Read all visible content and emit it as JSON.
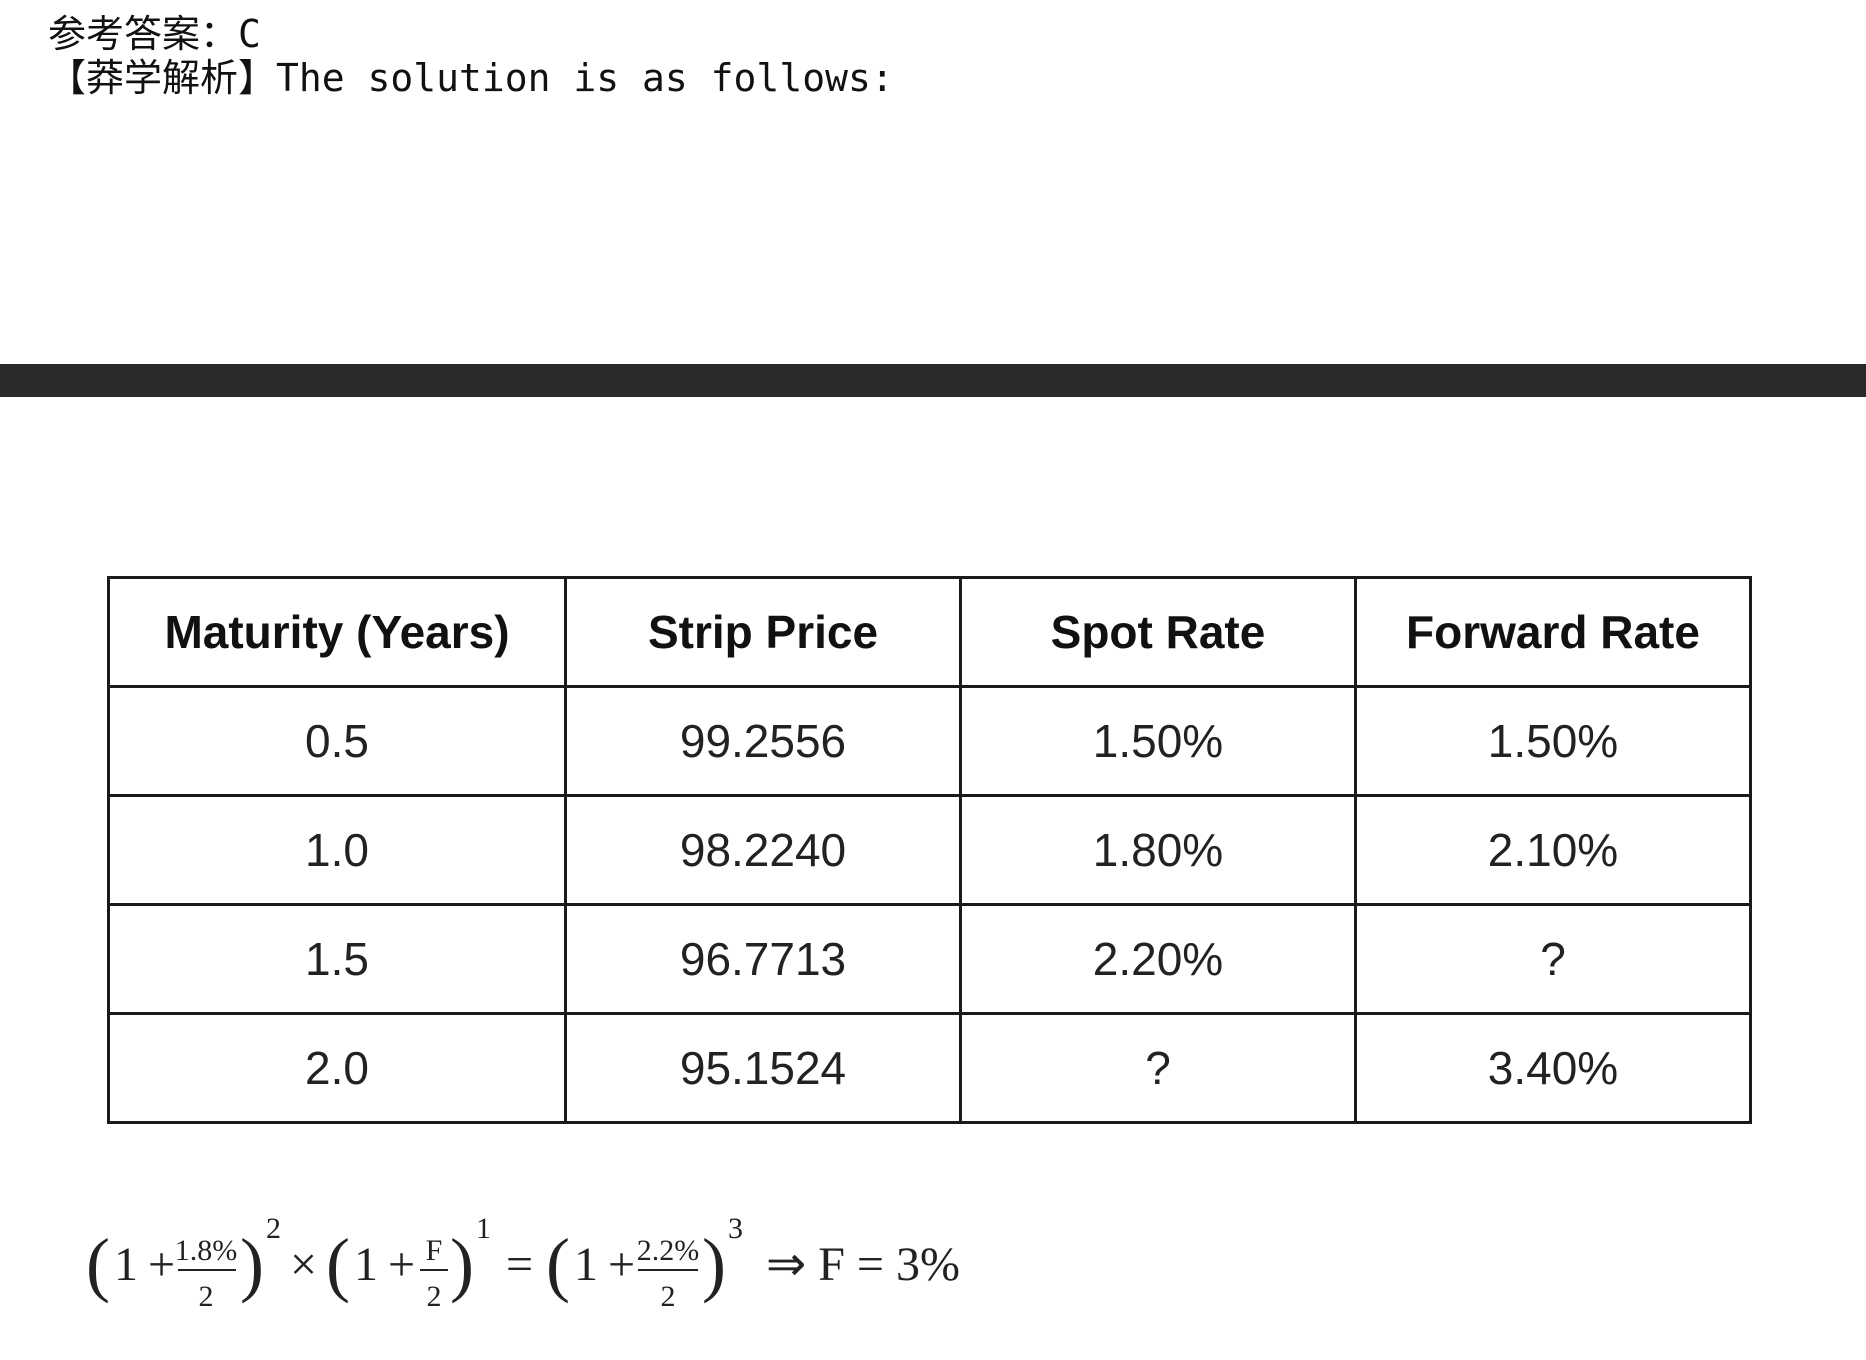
{
  "header": {
    "answer_line": "参考答案：C",
    "analysis_line": "【莽学解析】The solution is as follows:"
  },
  "table": {
    "headers": [
      "Maturity (Years)",
      "Strip Price",
      "Spot Rate",
      "Forward Rate"
    ],
    "rows": [
      [
        "0.5",
        "99.2556",
        "1.50%",
        "1.50%"
      ],
      [
        "1.0",
        "98.2240",
        "1.80%",
        "2.10%"
      ],
      [
        "1.5",
        "96.7713",
        "2.20%",
        "?"
      ],
      [
        "2.0",
        "95.1524",
        "?",
        "3.40%"
      ]
    ]
  },
  "formula": {
    "one": "1",
    "plus": "+",
    "rate1": "1.8%",
    "denom": "2",
    "exp1": "2",
    "times": "×",
    "F": "F",
    "exp2": "1",
    "equals": "=",
    "rate2": "2.2%",
    "exp3": "3",
    "result": "⇒ F = 3%"
  }
}
